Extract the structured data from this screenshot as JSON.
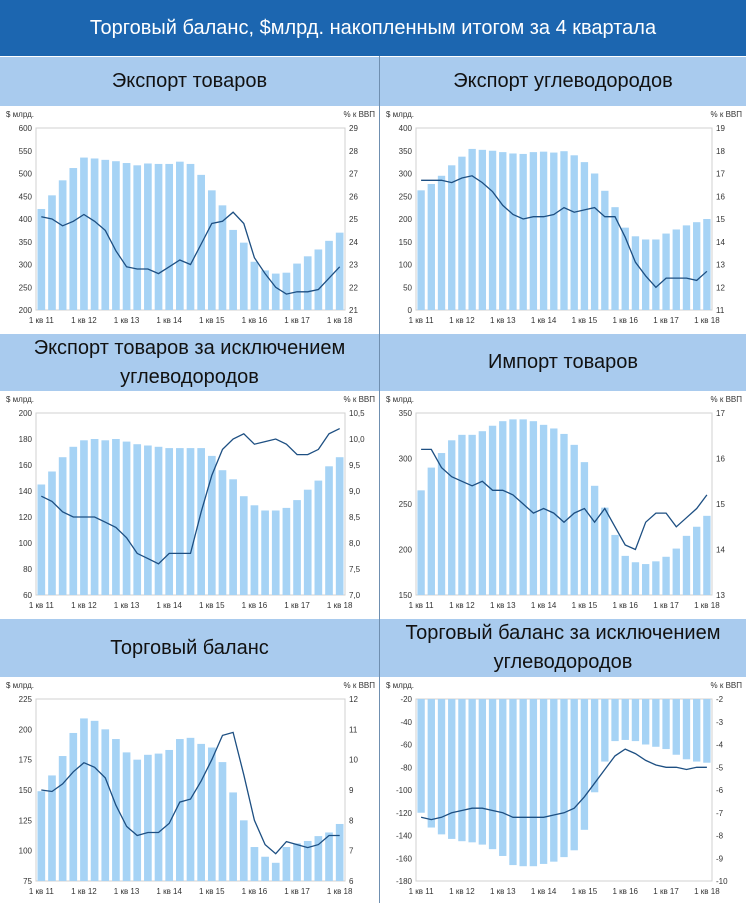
{
  "header": {
    "title": "Торговый баланс, $млрд. накопленным итогом за 4 квартала"
  },
  "colors": {
    "header_bg": "#1c66b0",
    "title_bg": "#a9cbee",
    "bar": "#a6d3f5",
    "line": "#1d4f82"
  },
  "panels": [
    {
      "title": "Экспорт товаров"
    },
    {
      "title": "Экспорт углеводородов"
    },
    {
      "title": "Экспорт товаров за исключением углеводородов"
    },
    {
      "title": "Импорт товаров"
    },
    {
      "title": "Торговый баланс"
    },
    {
      "title": "Торговый баланс за исключением углеводородов"
    }
  ],
  "chart_data": [
    {
      "type": "bar",
      "title": "Экспорт товаров",
      "ylabel": "$ млрд.",
      "y2label": "% к ВВП",
      "xticks": [
        "1 кв 11",
        "1 кв 12",
        "1 кв 13",
        "1 кв 14",
        "1 кв 15",
        "1 кв 16",
        "1 кв 17",
        "1 кв 18"
      ],
      "ylim": [
        200,
        600
      ],
      "yticks": [
        200,
        250,
        300,
        350,
        400,
        450,
        500,
        550,
        600
      ],
      "y2lim": [
        21,
        29
      ],
      "y2ticks": [
        21,
        22,
        23,
        24,
        25,
        26,
        27,
        28,
        29
      ],
      "series": [
        {
          "kind": "bar",
          "axis": "left",
          "values": [
            422,
            452,
            485,
            512,
            535,
            533,
            530,
            527,
            523,
            518,
            522,
            521,
            521,
            526,
            521,
            497,
            463,
            430,
            376,
            348,
            306,
            287,
            280,
            282,
            302,
            318,
            333,
            352,
            370
          ]
        },
        {
          "kind": "line",
          "axis": "right",
          "values": [
            25.1,
            25.0,
            24.7,
            24.9,
            25.2,
            24.9,
            24.5,
            23.6,
            22.9,
            22.8,
            22.8,
            22.6,
            22.9,
            23.2,
            23.0,
            23.9,
            24.8,
            24.9,
            25.3,
            24.8,
            23.3,
            22.6,
            22.0,
            21.7,
            21.8,
            21.8,
            21.9,
            22.4,
            22.9
          ]
        }
      ]
    },
    {
      "type": "bar",
      "title": "Экспорт углеводородов",
      "ylabel": "$ млрд.",
      "y2label": "% к ВВП",
      "xticks": [
        "1 кв 11",
        "1 кв 12",
        "1 кв 13",
        "1 кв 14",
        "1 кв 15",
        "1 кв 16",
        "1 кв 17",
        "1 кв 18"
      ],
      "ylim": [
        0,
        400
      ],
      "yticks": [
        0,
        50,
        100,
        150,
        200,
        250,
        300,
        350,
        400
      ],
      "y2lim": [
        11,
        19
      ],
      "y2ticks": [
        11,
        12,
        13,
        14,
        15,
        16,
        17,
        18,
        19
      ],
      "series": [
        {
          "kind": "bar",
          "axis": "left",
          "values": [
            263,
            277,
            295,
            318,
            337,
            354,
            352,
            350,
            347,
            344,
            343,
            347,
            348,
            346,
            349,
            340,
            325,
            300,
            262,
            226,
            181,
            162,
            155,
            155,
            168,
            177,
            186,
            193,
            200
          ]
        },
        {
          "kind": "line",
          "axis": "right",
          "values": [
            16.7,
            16.7,
            16.7,
            16.6,
            16.8,
            16.9,
            16.6,
            16.2,
            15.6,
            15.2,
            15.0,
            15.1,
            15.1,
            15.2,
            15.5,
            15.3,
            15.4,
            15.5,
            15.1,
            15.1,
            14.2,
            13.1,
            12.5,
            12.0,
            12.4,
            12.4,
            12.4,
            12.3,
            12.7
          ]
        }
      ]
    },
    {
      "type": "bar",
      "title": "Экспорт товаров за исключением углеводородов",
      "ylabel": "$ млрд.",
      "y2label": "% к ВВП",
      "xticks": [
        "1 кв 11",
        "1 кв 12",
        "1 кв 13",
        "1 кв 14",
        "1 кв 15",
        "1 кв 16",
        "1 кв 17",
        "1 кв 18"
      ],
      "ylim": [
        60,
        200
      ],
      "yticks": [
        60,
        80,
        100,
        120,
        140,
        160,
        180,
        200
      ],
      "y2lim": [
        7.0,
        10.5
      ],
      "y2ticks": [
        "7,0",
        "7,5",
        "8,0",
        "8,5",
        "9,0",
        "9,5",
        "10,0",
        "10,5"
      ],
      "series": [
        {
          "kind": "bar",
          "axis": "left",
          "values": [
            145,
            155,
            166,
            174,
            179,
            180,
            179,
            180,
            178,
            176,
            175,
            174,
            173,
            173,
            173,
            173,
            167,
            156,
            149,
            136,
            129,
            125,
            125,
            127,
            133,
            141,
            148,
            159,
            166
          ]
        },
        {
          "kind": "line",
          "axis": "right",
          "values": [
            8.9,
            8.8,
            8.6,
            8.5,
            8.5,
            8.5,
            8.4,
            8.3,
            8.1,
            7.8,
            7.7,
            7.6,
            7.8,
            7.8,
            7.8,
            8.6,
            9.3,
            9.8,
            10.0,
            10.1,
            9.9,
            9.95,
            10.0,
            9.9,
            9.7,
            9.7,
            9.8,
            10.1,
            10.2
          ]
        }
      ]
    },
    {
      "type": "bar",
      "title": "Импорт товаров",
      "ylabel": "$ млрд.",
      "y2label": "% к ВВП",
      "xticks": [
        "1 кв 11",
        "1 кв 12",
        "1 кв 13",
        "1 кв 14",
        "1 кв 15",
        "1 кв 16",
        "1 кв 17",
        "1 кв 18"
      ],
      "ylim": [
        150,
        350
      ],
      "yticks": [
        150,
        200,
        250,
        300,
        350
      ],
      "y2lim": [
        13,
        17
      ],
      "y2ticks": [
        13,
        14,
        15,
        16,
        17
      ],
      "series": [
        {
          "kind": "bar",
          "axis": "left",
          "values": [
            265,
            290,
            306,
            320,
            326,
            326,
            330,
            336,
            341,
            343,
            343,
            341,
            337,
            333,
            327,
            315,
            296,
            270,
            246,
            216,
            193,
            186,
            184,
            187,
            192,
            201,
            215,
            225,
            237
          ]
        },
        {
          "kind": "line",
          "axis": "right",
          "values": [
            16.2,
            16.2,
            15.8,
            15.6,
            15.5,
            15.4,
            15.5,
            15.3,
            15.3,
            15.2,
            15.0,
            14.8,
            14.9,
            14.8,
            14.6,
            14.8,
            14.9,
            14.6,
            14.9,
            14.5,
            14.1,
            14.0,
            14.6,
            14.8,
            14.8,
            14.5,
            14.7,
            14.9,
            15.2
          ]
        }
      ]
    },
    {
      "type": "bar",
      "title": "Торговый баланс",
      "ylabel": "$ млрд.",
      "y2label": "% к ВВП",
      "xticks": [
        "1 кв 11",
        "1 кв 12",
        "1 кв 13",
        "1 кв 14",
        "1 кв 15",
        "1 кв 16",
        "1 кв 17",
        "1 кв 18"
      ],
      "ylim": [
        75,
        225
      ],
      "yticks": [
        75,
        100,
        125,
        150,
        175,
        200,
        225
      ],
      "y2lim": [
        6,
        12
      ],
      "y2ticks": [
        6,
        7,
        8,
        9,
        10,
        11,
        12
      ],
      "series": [
        {
          "kind": "bar",
          "axis": "left",
          "values": [
            149,
            162,
            178,
            197,
            209,
            207,
            200,
            192,
            181,
            175,
            179,
            180,
            183,
            192,
            193,
            188,
            185,
            173,
            148,
            125,
            103,
            95,
            90,
            103,
            106,
            108,
            112,
            115,
            122
          ]
        },
        {
          "kind": "line",
          "axis": "right",
          "values": [
            9.0,
            8.95,
            9.2,
            9.6,
            9.9,
            9.75,
            9.4,
            8.5,
            7.8,
            7.5,
            7.6,
            7.6,
            7.9,
            8.6,
            8.7,
            9.3,
            10.0,
            10.8,
            10.9,
            9.5,
            8.0,
            7.2,
            6.9,
            7.3,
            7.2,
            7.1,
            7.2,
            7.5,
            7.5
          ]
        }
      ]
    },
    {
      "type": "bar",
      "title": "Торговый баланс за исключением углеводородов",
      "ylabel": "$ млрд.",
      "y2label": "% к ВВП",
      "xticks": [
        "1 кв 11",
        "1 кв 12",
        "1 кв 13",
        "1 кв 14",
        "1 кв 15",
        "1 кв 16",
        "1 кв 17",
        "1 кв 18"
      ],
      "ylim": [
        -180,
        -20
      ],
      "yticks": [
        -180,
        -160,
        -140,
        -120,
        -100,
        -80,
        -60,
        -40,
        -20
      ],
      "y2lim": [
        -10,
        -2
      ],
      "y2ticks": [
        -10,
        -9,
        -8,
        -7,
        -6,
        -5,
        -4,
        -3,
        -2
      ],
      "series": [
        {
          "kind": "bar",
          "axis": "left",
          "values": [
            -120,
            -133,
            -139,
            -143,
            -145,
            -146,
            -148,
            -152,
            -158,
            -166,
            -167,
            -167,
            -165,
            -163,
            -159,
            -153,
            -135,
            -102,
            -75,
            -57,
            -56,
            -57,
            -60,
            -62,
            -64,
            -69,
            -73,
            -75,
            -76
          ]
        },
        {
          "kind": "line",
          "axis": "right",
          "values": [
            -7.2,
            -7.3,
            -7.2,
            -7.0,
            -6.9,
            -6.8,
            -6.8,
            -6.9,
            -7.0,
            -7.2,
            -7.2,
            -7.2,
            -7.2,
            -7.1,
            -7.0,
            -6.8,
            -6.3,
            -5.7,
            -5.1,
            -4.5,
            -4.2,
            -4.4,
            -4.7,
            -4.9,
            -5.0,
            -5.0,
            -5.1,
            -5.0,
            -5.0
          ]
        }
      ]
    }
  ]
}
